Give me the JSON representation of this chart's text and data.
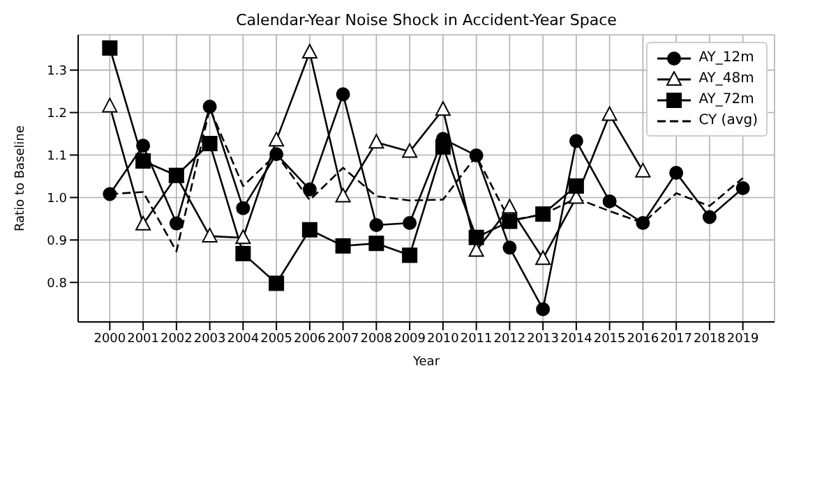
{
  "chart_data": {
    "type": "line",
    "title": "Calendar-Year Noise Shock in Accident-Year Space",
    "xlabel": "Year",
    "ylabel": "Ratio to Baseline",
    "x": [
      2000,
      2001,
      2002,
      2003,
      2004,
      2005,
      2006,
      2007,
      2008,
      2009,
      2010,
      2011,
      2012,
      2013,
      2014,
      2015,
      2016,
      2017,
      2018,
      2019
    ],
    "series": [
      {
        "name": "AY_12m",
        "color": "#000000",
        "marker": "circle",
        "line_style": "solid",
        "values": [
          1.008,
          1.122,
          0.939,
          1.214,
          0.975,
          1.102,
          1.019,
          1.243,
          0.935,
          0.94,
          1.138,
          1.099,
          0.882,
          0.737,
          1.133,
          0.991,
          0.94,
          1.058,
          0.954,
          1.022
        ]
      },
      {
        "name": "AY_48m",
        "color": "#000000",
        "marker": "triangle",
        "line_style": "solid",
        "values": [
          1.215,
          0.937,
          1.05,
          0.909,
          0.905,
          1.135,
          1.342,
          1.003,
          1.13,
          1.108,
          1.207,
          0.875,
          0.977,
          0.856,
          1.0,
          1.195,
          1.062,
          null,
          null,
          null
        ]
      },
      {
        "name": "AY_72m",
        "color": "#000000",
        "marker": "square",
        "line_style": "solid",
        "values": [
          1.352,
          1.086,
          1.052,
          1.127,
          0.868,
          0.798,
          0.924,
          0.886,
          0.892,
          0.864,
          1.119,
          0.906,
          0.944,
          0.961,
          1.027,
          null,
          null,
          null,
          null,
          null
        ]
      },
      {
        "name": "CY (avg)",
        "color": "#000000",
        "marker": "none",
        "line_style": "dashed",
        "values": [
          1.008,
          1.013,
          0.873,
          1.21,
          1.027,
          1.102,
          0.994,
          1.07,
          1.003,
          0.993,
          0.995,
          1.098,
          0.946,
          0.96,
          0.998,
          0.968,
          0.94,
          1.01,
          0.98,
          1.046
        ]
      }
    ],
    "xlim": [
      1999.05,
      2019.95
    ],
    "xticks": [
      2000,
      2001,
      2002,
      2003,
      2004,
      2005,
      2006,
      2007,
      2008,
      2009,
      2010,
      2011,
      2012,
      2013,
      2014,
      2015,
      2016,
      2017,
      2018,
      2019
    ],
    "ylim": [
      0.707,
      1.383
    ],
    "yticks": [
      0.8,
      0.9,
      {
        "value": 1.0,
        "label": "1.0"
      },
      1.1,
      1.2,
      1.3
    ],
    "grid": true,
    "legend": "top right"
  }
}
